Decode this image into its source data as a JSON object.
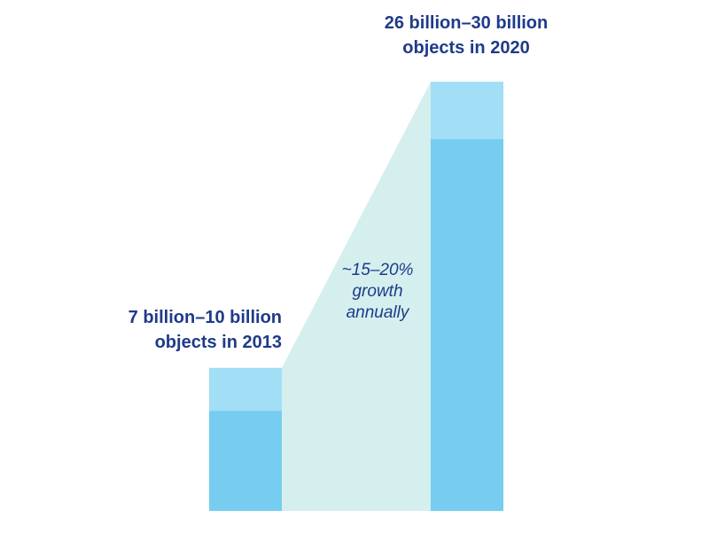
{
  "chart_data": {
    "type": "bar",
    "categories": [
      "2013",
      "2020"
    ],
    "series": [
      {
        "values": [
          7,
          26
        ]
      },
      {
        "values": [
          10,
          30
        ]
      }
    ],
    "ylim": [
      0,
      31
    ],
    "labels": [
      {
        "line1": "7 billion–10 billion",
        "line2": "objects in 2013"
      },
      {
        "line1": "26 billion–30 billion",
        "line2": "objects in 2020"
      }
    ],
    "annotation": {
      "line1": "~15–20%",
      "line2": "growth",
      "line3": "annually"
    },
    "grid": false,
    "colors": {
      "low": "#76cdf0",
      "range": "#a2def6",
      "growth_area": "#d4efee",
      "text": "#1f3a8a"
    }
  }
}
